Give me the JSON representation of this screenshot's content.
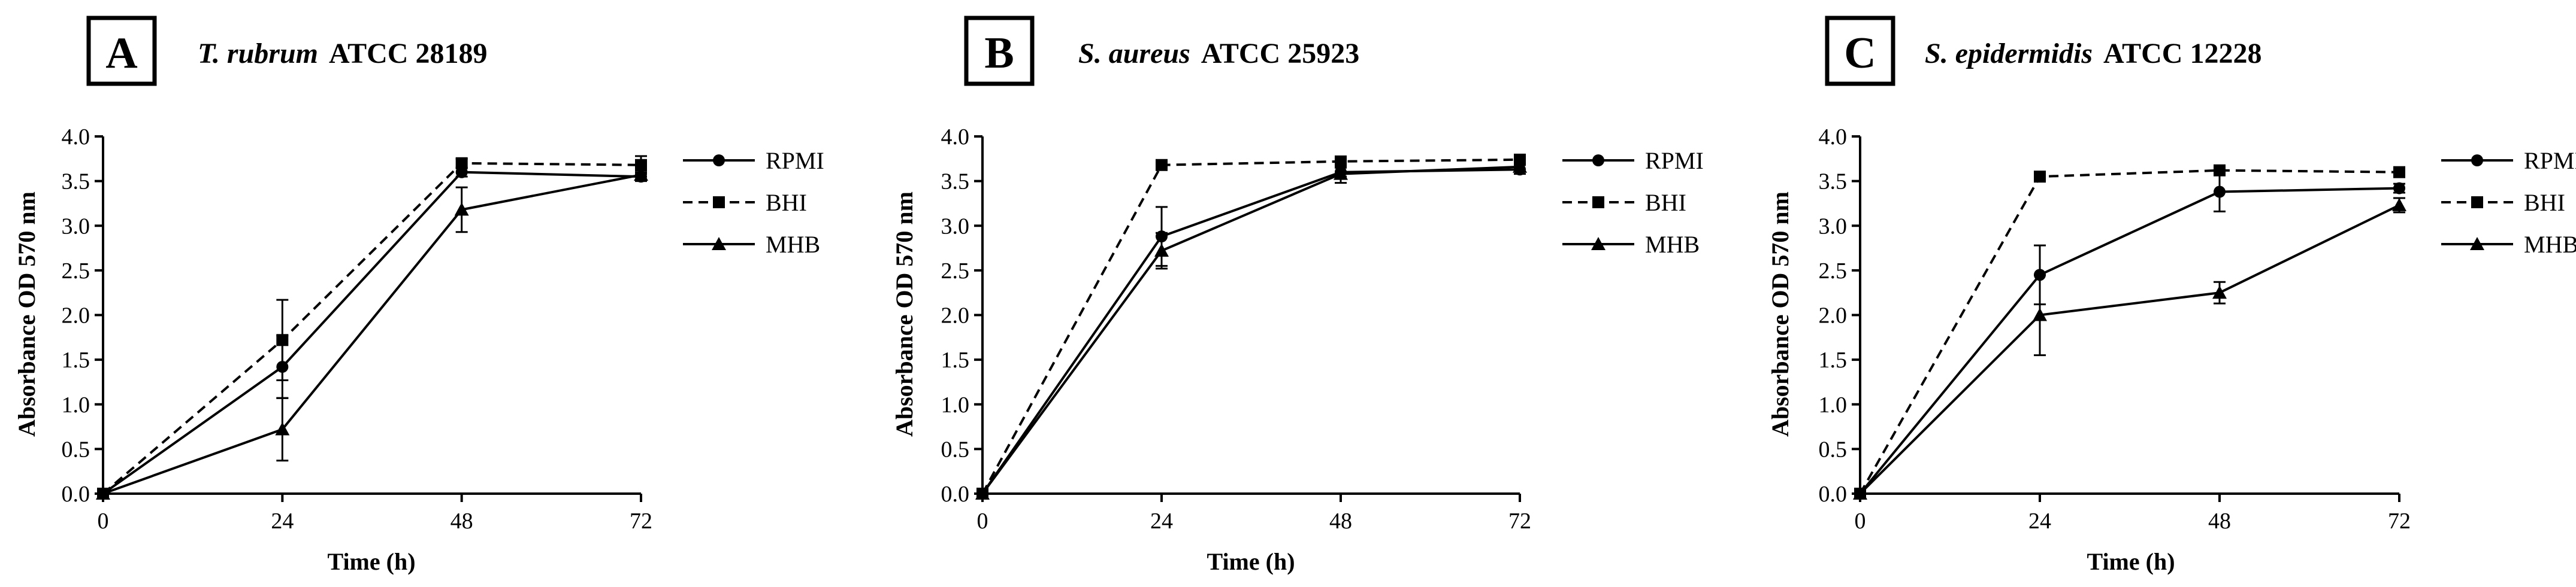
{
  "chart_data": [
    {
      "type": "line",
      "panel_label": "A",
      "title_italic": "T. rubrum",
      "title_rest": "ATCC 28189",
      "xlabel": "Time (h)",
      "ylabel": "Absorbance OD 570 nm",
      "x": [
        0,
        24,
        48,
        72
      ],
      "xticks": [
        "0",
        "24",
        "48",
        "72"
      ],
      "xlim": [
        0,
        72
      ],
      "ylim": [
        0,
        4
      ],
      "yticks": [
        "0.0",
        "0.5",
        "1.0",
        "1.5",
        "2.0",
        "2.5",
        "3.0",
        "3.5",
        "4.0"
      ],
      "grid": false,
      "legend_position": "right",
      "series": [
        {
          "name": "RPMI",
          "marker": "circle",
          "line": "solid",
          "values": [
            0,
            1.42,
            3.6,
            3.55
          ],
          "errors": [
            0,
            0.35,
            0.05,
            0.05
          ]
        },
        {
          "name": "BHI",
          "marker": "square",
          "line": "dashed",
          "values": [
            0,
            1.72,
            3.7,
            3.68
          ],
          "errors": [
            0,
            0.45,
            0.05,
            0.1
          ]
        },
        {
          "name": "MHB",
          "marker": "triangle",
          "line": "solid",
          "values": [
            0,
            0.72,
            3.18,
            3.57
          ],
          "errors": [
            0,
            0.35,
            0.25,
            0.05
          ]
        }
      ]
    },
    {
      "type": "line",
      "panel_label": "B",
      "title_italic": "S. aureus",
      "title_rest": "ATCC 25923",
      "xlabel": "Time (h)",
      "ylabel": "Absorbance OD 570 nm",
      "x": [
        0,
        24,
        48,
        72
      ],
      "xticks": [
        "0",
        "24",
        "48",
        "72"
      ],
      "xlim": [
        0,
        72
      ],
      "ylim": [
        0,
        4
      ],
      "yticks": [
        "0.0",
        "0.5",
        "1.0",
        "1.5",
        "2.0",
        "2.5",
        "3.0",
        "3.5",
        "4.0"
      ],
      "grid": false,
      "legend_position": "right",
      "series": [
        {
          "name": "RPMI",
          "marker": "circle",
          "line": "solid",
          "values": [
            0,
            2.88,
            3.6,
            3.63
          ],
          "errors": [
            0,
            0.33,
            0.05,
            0.05
          ]
        },
        {
          "name": "BHI",
          "marker": "square",
          "line": "dashed",
          "values": [
            0,
            3.68,
            3.72,
            3.74
          ],
          "errors": [
            0,
            0.03,
            0.05,
            0.05
          ]
        },
        {
          "name": "MHB",
          "marker": "triangle",
          "line": "solid",
          "values": [
            0,
            2.72,
            3.58,
            3.66
          ],
          "errors": [
            0,
            0.2,
            0.1,
            0.05
          ]
        }
      ]
    },
    {
      "type": "line",
      "panel_label": "C",
      "title_italic": "S. epidermidis",
      "title_rest": "ATCC 12228",
      "xlabel": "Time (h)",
      "ylabel": "Absorbance OD 570 nm",
      "x": [
        0,
        24,
        48,
        72
      ],
      "xticks": [
        "0",
        "24",
        "48",
        "72"
      ],
      "xlim": [
        0,
        72
      ],
      "ylim": [
        0,
        4
      ],
      "yticks": [
        "0.0",
        "0.5",
        "1.0",
        "1.5",
        "2.0",
        "2.5",
        "3.0",
        "3.5",
        "4.0"
      ],
      "grid": false,
      "legend_position": "right",
      "series": [
        {
          "name": "RPMI",
          "marker": "circle",
          "line": "solid",
          "values": [
            0,
            2.45,
            3.38,
            3.42
          ],
          "errors": [
            0,
            0.33,
            0.22,
            0.05
          ]
        },
        {
          "name": "BHI",
          "marker": "square",
          "line": "dashed",
          "values": [
            0,
            3.55,
            3.62,
            3.6
          ],
          "errors": [
            0,
            0.03,
            0.05,
            0.05
          ]
        },
        {
          "name": "MHB",
          "marker": "triangle",
          "line": "solid",
          "values": [
            0,
            2.0,
            2.25,
            3.23
          ],
          "errors": [
            0,
            0.45,
            0.12,
            0.08
          ]
        }
      ]
    }
  ]
}
